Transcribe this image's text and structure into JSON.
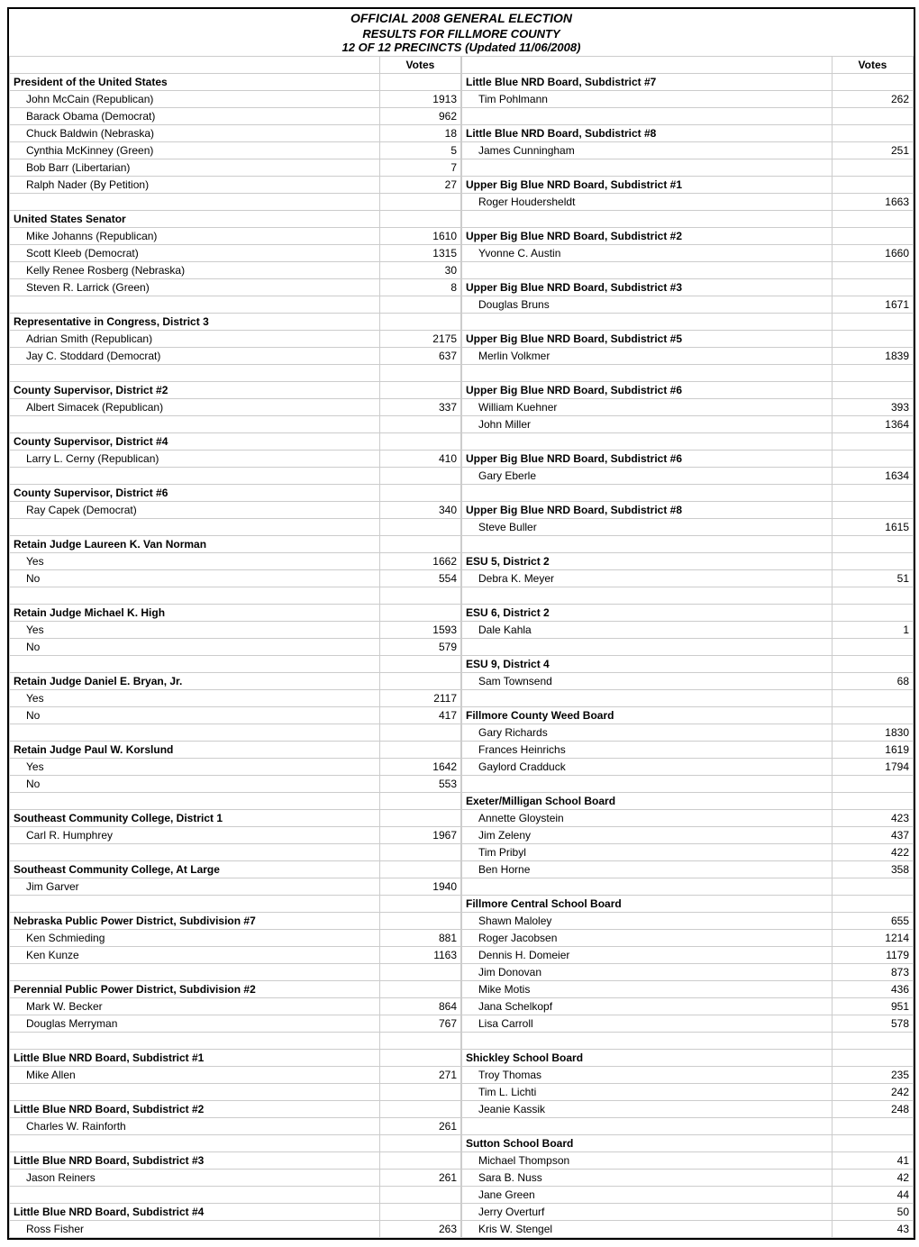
{
  "title": "OFFICIAL 2008 GENERAL ELECTION",
  "subtitle": "RESULTS FOR FILLMORE COUNTY",
  "precincts": "12 OF 12 PRECINCTS (Updated 11/06/2008)",
  "votes_label": "Votes",
  "left": [
    {
      "t": "hdr",
      "label": "President of the United States",
      "votes": ""
    },
    {
      "t": "row",
      "label": "John McCain (Republican)",
      "votes": "1913"
    },
    {
      "t": "row",
      "label": "Barack Obama (Democrat)",
      "votes": "962"
    },
    {
      "t": "row",
      "label": "Chuck Baldwin (Nebraska)",
      "votes": "18"
    },
    {
      "t": "row",
      "label": "Cynthia McKinney (Green)",
      "votes": "5"
    },
    {
      "t": "row",
      "label": "Bob Barr (Libertarian)",
      "votes": "7"
    },
    {
      "t": "row",
      "label": "Ralph Nader (By Petition)",
      "votes": "27"
    },
    {
      "t": "blank"
    },
    {
      "t": "hdr",
      "label": "United States Senator",
      "votes": ""
    },
    {
      "t": "row",
      "label": "Mike Johanns (Republican)",
      "votes": "1610"
    },
    {
      "t": "row",
      "label": "Scott Kleeb (Democrat)",
      "votes": "1315"
    },
    {
      "t": "row",
      "label": "Kelly Renee Rosberg (Nebraska)",
      "votes": "30"
    },
    {
      "t": "row",
      "label": "Steven R. Larrick (Green)",
      "votes": "8"
    },
    {
      "t": "blank"
    },
    {
      "t": "hdr",
      "label": "Representative in Congress, District 3",
      "votes": ""
    },
    {
      "t": "row",
      "label": "Adrian Smith (Republican)",
      "votes": "2175"
    },
    {
      "t": "row",
      "label": "Jay C. Stoddard (Democrat)",
      "votes": "637"
    },
    {
      "t": "blank"
    },
    {
      "t": "hdr",
      "label": "County Supervisor, District #2",
      "votes": ""
    },
    {
      "t": "row",
      "label": "Albert Simacek (Republican)",
      "votes": "337"
    },
    {
      "t": "blank"
    },
    {
      "t": "hdr",
      "label": "County Supervisor, District #4",
      "votes": ""
    },
    {
      "t": "row",
      "label": "Larry L. Cerny (Republican)",
      "votes": "410"
    },
    {
      "t": "blank"
    },
    {
      "t": "hdr",
      "label": "County Supervisor, District #6",
      "votes": ""
    },
    {
      "t": "row",
      "label": "Ray Capek (Democrat)",
      "votes": "340"
    },
    {
      "t": "blank"
    },
    {
      "t": "hdr",
      "label": "Retain Judge Laureen K. Van Norman",
      "votes": ""
    },
    {
      "t": "row",
      "label": "Yes",
      "votes": "1662"
    },
    {
      "t": "row",
      "label": "No",
      "votes": "554"
    },
    {
      "t": "blank"
    },
    {
      "t": "hdr",
      "label": "Retain Judge Michael K. High",
      "votes": ""
    },
    {
      "t": "row",
      "label": "Yes",
      "votes": "1593"
    },
    {
      "t": "row",
      "label": "No",
      "votes": "579"
    },
    {
      "t": "blank"
    },
    {
      "t": "hdr",
      "label": "Retain Judge Daniel E. Bryan, Jr.",
      "votes": ""
    },
    {
      "t": "row",
      "label": "Yes",
      "votes": "2117"
    },
    {
      "t": "row",
      "label": "No",
      "votes": "417"
    },
    {
      "t": "blank"
    },
    {
      "t": "hdr",
      "label": "Retain Judge Paul W. Korslund",
      "votes": ""
    },
    {
      "t": "row",
      "label": "Yes",
      "votes": "1642"
    },
    {
      "t": "row",
      "label": "No",
      "votes": "553"
    },
    {
      "t": "blank"
    },
    {
      "t": "hdr",
      "label": "Southeast Community College, District 1",
      "votes": ""
    },
    {
      "t": "row",
      "label": "Carl R. Humphrey",
      "votes": "1967"
    },
    {
      "t": "blank"
    },
    {
      "t": "hdr",
      "label": "Southeast Community College, At Large",
      "votes": ""
    },
    {
      "t": "row",
      "label": "Jim Garver",
      "votes": "1940"
    },
    {
      "t": "blank"
    },
    {
      "t": "hdr",
      "label": "Nebraska Public Power District, Subdivision #7",
      "votes": ""
    },
    {
      "t": "row",
      "label": "Ken Schmieding",
      "votes": "881"
    },
    {
      "t": "row",
      "label": "Ken Kunze",
      "votes": "1163"
    },
    {
      "t": "blank"
    },
    {
      "t": "hdr",
      "label": "Perennial Public Power District, Subdivision #2",
      "votes": ""
    },
    {
      "t": "row",
      "label": "Mark W. Becker",
      "votes": "864"
    },
    {
      "t": "row",
      "label": "Douglas Merryman",
      "votes": "767"
    },
    {
      "t": "blank"
    },
    {
      "t": "hdr",
      "label": "Little Blue NRD Board, Subdistrict #1",
      "votes": ""
    },
    {
      "t": "row",
      "label": "Mike Allen",
      "votes": "271"
    },
    {
      "t": "blank"
    },
    {
      "t": "hdr",
      "label": "Little Blue NRD Board, Subdistrict #2",
      "votes": ""
    },
    {
      "t": "row",
      "label": "Charles W. Rainforth",
      "votes": "261"
    },
    {
      "t": "blank"
    },
    {
      "t": "hdr",
      "label": "Little Blue NRD Board, Subdistrict #3",
      "votes": ""
    },
    {
      "t": "row",
      "label": "Jason Reiners",
      "votes": "261"
    },
    {
      "t": "blank"
    },
    {
      "t": "hdr",
      "label": "Little Blue NRD Board, Subdistrict #4",
      "votes": ""
    },
    {
      "t": "row",
      "label": "Ross Fisher",
      "votes": "263"
    }
  ],
  "right": [
    {
      "t": "hdr",
      "label": "Little Blue NRD Board, Subdistrict #7",
      "votes": ""
    },
    {
      "t": "row",
      "label": "Tim Pohlmann",
      "votes": "262"
    },
    {
      "t": "blank"
    },
    {
      "t": "hdr",
      "label": "Little Blue NRD Board, Subdistrict #8",
      "votes": ""
    },
    {
      "t": "row",
      "label": "James Cunningham",
      "votes": "251"
    },
    {
      "t": "blank"
    },
    {
      "t": "hdr",
      "label": "Upper Big Blue NRD Board, Subdistrict #1",
      "votes": ""
    },
    {
      "t": "row",
      "label": "Roger Houdersheldt",
      "votes": "1663"
    },
    {
      "t": "blank"
    },
    {
      "t": "hdr",
      "label": "Upper Big Blue NRD Board, Subdistrict #2",
      "votes": ""
    },
    {
      "t": "row",
      "label": "Yvonne C. Austin",
      "votes": "1660"
    },
    {
      "t": "blank"
    },
    {
      "t": "hdr",
      "label": "Upper Big Blue NRD Board, Subdistrict #3",
      "votes": ""
    },
    {
      "t": "row",
      "label": "Douglas Bruns",
      "votes": "1671"
    },
    {
      "t": "blank"
    },
    {
      "t": "hdr",
      "label": "Upper Big Blue NRD Board, Subdistrict #5",
      "votes": ""
    },
    {
      "t": "row",
      "label": "Merlin Volkmer",
      "votes": "1839"
    },
    {
      "t": "blank"
    },
    {
      "t": "hdr",
      "label": "Upper Big Blue NRD Board, Subdistrict #6",
      "votes": ""
    },
    {
      "t": "row",
      "label": "William Kuehner",
      "votes": "393"
    },
    {
      "t": "row",
      "label": "John Miller",
      "votes": "1364"
    },
    {
      "t": "blank"
    },
    {
      "t": "hdr",
      "label": "Upper Big Blue NRD Board, Subdistrict #6",
      "votes": ""
    },
    {
      "t": "row",
      "label": "Gary Eberle",
      "votes": "1634"
    },
    {
      "t": "blank"
    },
    {
      "t": "hdr",
      "label": "Upper Big Blue NRD Board, Subdistrict #8",
      "votes": ""
    },
    {
      "t": "row",
      "label": "Steve Buller",
      "votes": "1615"
    },
    {
      "t": "blank"
    },
    {
      "t": "hdr",
      "label": "ESU 5, District 2",
      "votes": ""
    },
    {
      "t": "row",
      "label": "Debra K. Meyer",
      "votes": "51"
    },
    {
      "t": "blank"
    },
    {
      "t": "hdr",
      "label": "ESU 6, District 2",
      "votes": ""
    },
    {
      "t": "row",
      "label": "Dale Kahla",
      "votes": "1"
    },
    {
      "t": "blank"
    },
    {
      "t": "hdr",
      "label": "ESU 9, District 4",
      "votes": ""
    },
    {
      "t": "row",
      "label": "Sam Townsend",
      "votes": "68"
    },
    {
      "t": "blank"
    },
    {
      "t": "hdr",
      "label": "Fillmore County Weed Board",
      "votes": ""
    },
    {
      "t": "row",
      "label": "Gary Richards",
      "votes": "1830"
    },
    {
      "t": "row",
      "label": "Frances Heinrichs",
      "votes": "1619"
    },
    {
      "t": "row",
      "label": "Gaylord Cradduck",
      "votes": "1794"
    },
    {
      "t": "blank"
    },
    {
      "t": "hdr",
      "label": "Exeter/Milligan School Board",
      "votes": ""
    },
    {
      "t": "row",
      "label": "Annette Gloystein",
      "votes": "423"
    },
    {
      "t": "row",
      "label": "Jim Zeleny",
      "votes": "437"
    },
    {
      "t": "row",
      "label": "Tim Pribyl",
      "votes": "422"
    },
    {
      "t": "row",
      "label": "Ben Horne",
      "votes": "358"
    },
    {
      "t": "blank"
    },
    {
      "t": "hdr",
      "label": "Fillmore Central School Board",
      "votes": ""
    },
    {
      "t": "row",
      "label": "Shawn Maloley",
      "votes": "655"
    },
    {
      "t": "row",
      "label": "Roger Jacobsen",
      "votes": "1214"
    },
    {
      "t": "row",
      "label": "Dennis H. Domeier",
      "votes": "1179"
    },
    {
      "t": "row",
      "label": "Jim Donovan",
      "votes": "873"
    },
    {
      "t": "row",
      "label": "Mike Motis",
      "votes": "436"
    },
    {
      "t": "row",
      "label": "Jana Schelkopf",
      "votes": "951"
    },
    {
      "t": "row",
      "label": "Lisa Carroll",
      "votes": "578"
    },
    {
      "t": "blank"
    },
    {
      "t": "hdr",
      "label": "Shickley School Board",
      "votes": ""
    },
    {
      "t": "row",
      "label": "Troy Thomas",
      "votes": "235"
    },
    {
      "t": "row",
      "label": "Tim L. Lichti",
      "votes": "242"
    },
    {
      "t": "row",
      "label": "Jeanie Kassik",
      "votes": "248"
    },
    {
      "t": "blank"
    },
    {
      "t": "hdr",
      "label": "Sutton School Board",
      "votes": ""
    },
    {
      "t": "row",
      "label": "Michael Thompson",
      "votes": "41"
    },
    {
      "t": "row",
      "label": "Sara B. Nuss",
      "votes": "42"
    },
    {
      "t": "row",
      "label": "Jane Green",
      "votes": "44"
    },
    {
      "t": "row",
      "label": "Jerry Overturf",
      "votes": "50"
    },
    {
      "t": "row",
      "label": "Kris W. Stengel",
      "votes": "43"
    }
  ]
}
